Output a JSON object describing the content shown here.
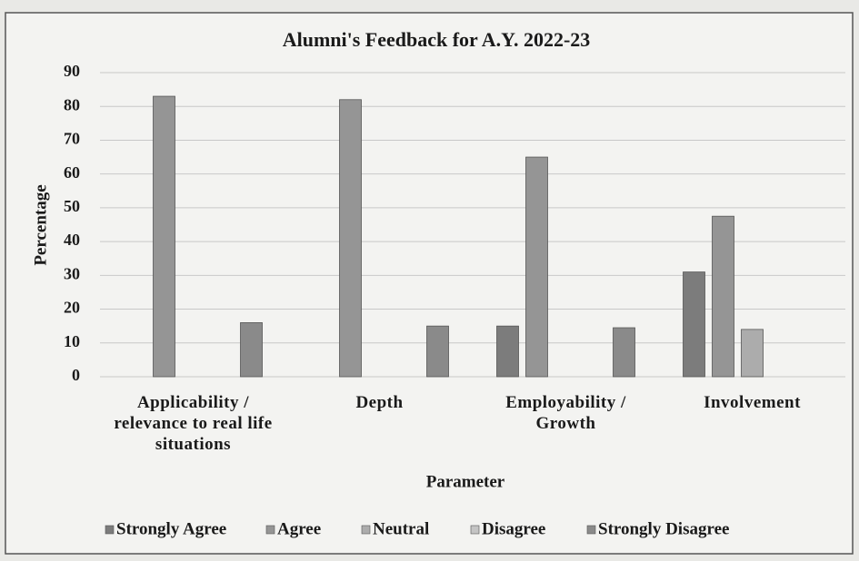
{
  "chart_data": {
    "type": "bar",
    "title": "Alumni's Feedback for A.Y. 2022-23",
    "xlabel": "Parameter",
    "ylabel": "Percentage",
    "categories": [
      "Applicability / relevance to real life situations",
      "Depth",
      "Employability / Growth",
      "Involvement"
    ],
    "series": [
      {
        "name": "Strongly Agree",
        "color": "#7c7c7c",
        "values": [
          0,
          0,
          15,
          31
        ]
      },
      {
        "name": "Agree",
        "color": "#959595",
        "values": [
          83,
          82,
          65,
          47.5
        ]
      },
      {
        "name": "Neutral",
        "color": "#acacac",
        "values": [
          0,
          0,
          0,
          14
        ]
      },
      {
        "name": "Disagree",
        "color": "#c4c4c4",
        "values": [
          0,
          0,
          0,
          0
        ]
      },
      {
        "name": "Strongly Disagree",
        "color": "#8a8a8a",
        "values": [
          16,
          15,
          14.5,
          0
        ]
      }
    ],
    "ylim": [
      0,
      90
    ],
    "yticks": [
      0,
      10,
      20,
      30,
      40,
      50,
      60,
      70,
      80,
      90
    ],
    "grid": true,
    "legend": "bottom"
  }
}
